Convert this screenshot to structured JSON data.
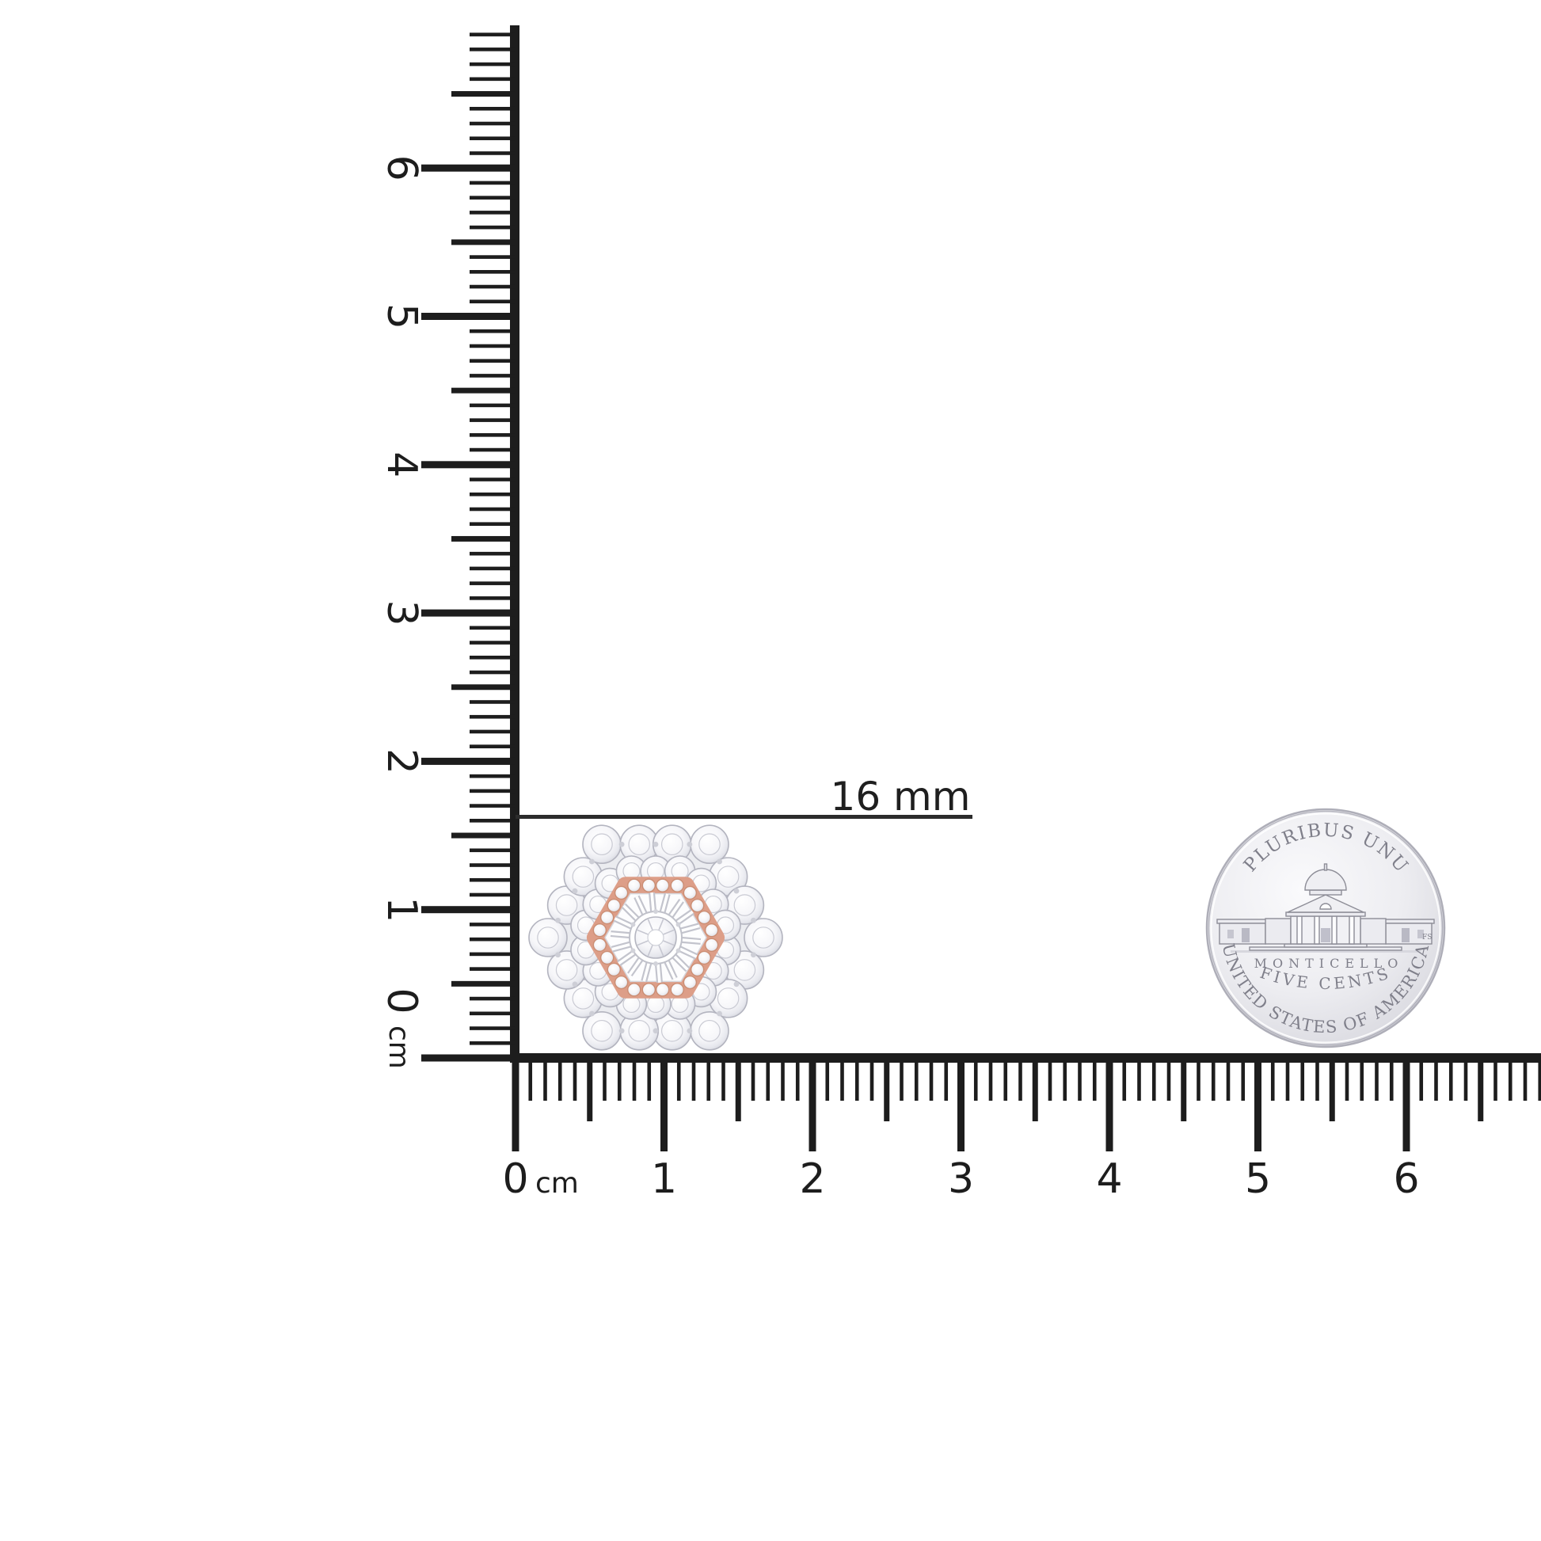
{
  "image": {
    "description": "Hexagonal diamond cluster stud earring shown to scale with centimeter rulers and a United States nickel",
    "background": "#ffffff",
    "ink": "#1d1d1d"
  },
  "size_annotation": {
    "label": "16 mm",
    "line_color": "#2c2c2c"
  },
  "vertical_ruler": {
    "unit": "cm",
    "tick_labels": [
      "0",
      "1",
      "2",
      "3",
      "4",
      "5",
      "6"
    ]
  },
  "horizontal_ruler": {
    "unit": "cm",
    "tick_labels": [
      "0",
      "1",
      "2",
      "3",
      "4",
      "5",
      "6"
    ]
  },
  "earring": {
    "colors": {
      "rose_gold": "#dd9e88",
      "rose_gold_deep": "#cb8e74",
      "white_gold": "#ebecf0",
      "stone_edge": "#b3b4bf"
    }
  },
  "coin": {
    "top_motto": "E PLURIBUS UNUM",
    "building_label": "MONTICELLO",
    "denomination": "FIVE CENTS",
    "bottom_motto": "UNITED STATES OF AMERICA",
    "designer_initials": "FS",
    "silver_color": "#ececf1"
  }
}
